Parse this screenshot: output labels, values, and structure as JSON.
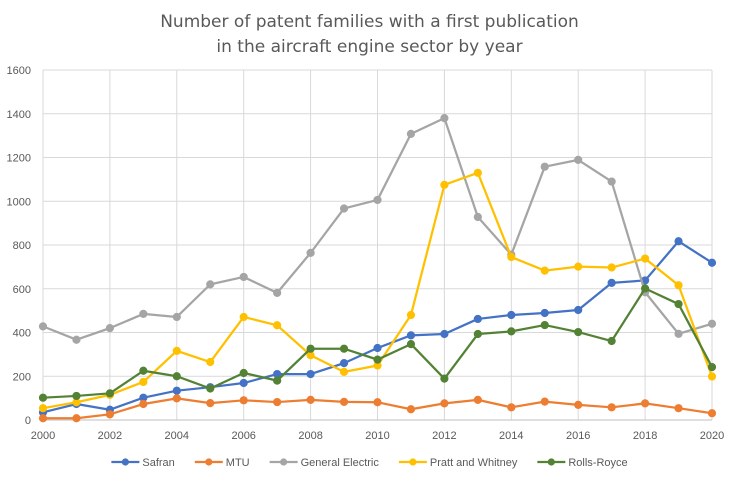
{
  "chart_data": {
    "type": "line",
    "title_lines": [
      "Number of patent families with a first publication",
      "in the aircraft engine sector by year"
    ],
    "xlabel": "",
    "ylabel": "",
    "x": [
      2000,
      2001,
      2002,
      2003,
      2004,
      2005,
      2006,
      2007,
      2008,
      2009,
      2010,
      2011,
      2012,
      2013,
      2014,
      2015,
      2016,
      2017,
      2018,
      2019,
      2020
    ],
    "x_tick_labels": [
      "2000",
      "2002",
      "2004",
      "2006",
      "2008",
      "2010",
      "2012",
      "2014",
      "2016",
      "2018",
      "2020"
    ],
    "x_ticks": [
      2000,
      2002,
      2004,
      2006,
      2008,
      2010,
      2012,
      2014,
      2016,
      2018,
      2020
    ],
    "xlim": [
      2000,
      2020
    ],
    "y_tick_labels": [
      "0",
      "200",
      "400",
      "600",
      "800",
      "1000",
      "1200",
      "1400",
      "1600"
    ],
    "y_ticks": [
      0,
      200,
      400,
      600,
      800,
      1000,
      1200,
      1400,
      1600
    ],
    "ylim": [
      0,
      1600
    ],
    "grid": true,
    "legend_position": "bottom",
    "series": [
      {
        "name": "Safran",
        "color": "#4472C4",
        "values": [
          35,
          73,
          47,
          102,
          134,
          150,
          169,
          210,
          210,
          260,
          329,
          387,
          393,
          462,
          480,
          489,
          503,
          627,
          638,
          817,
          719
        ]
      },
      {
        "name": "MTU",
        "color": "#ED7D31",
        "values": [
          8,
          8,
          26,
          73,
          99,
          77,
          90,
          82,
          92,
          83,
          81,
          49,
          76,
          92,
          58,
          84,
          69,
          58,
          76,
          54,
          31
        ]
      },
      {
        "name": "General Electric",
        "color": "#A5A5A5",
        "values": [
          428,
          367,
          420,
          485,
          471,
          620,
          654,
          581,
          764,
          967,
          1006,
          1308,
          1380,
          928,
          756,
          1158,
          1189,
          1090,
          584,
          394,
          440
        ]
      },
      {
        "name": "Pratt and Whitney",
        "color": "#FFC000",
        "values": [
          54,
          81,
          115,
          174,
          316,
          265,
          471,
          433,
          296,
          220,
          249,
          480,
          1075,
          1130,
          745,
          683,
          701,
          697,
          738,
          616,
          199
        ]
      },
      {
        "name": "Rolls-Royce",
        "color": "#548235",
        "values": [
          102,
          110,
          122,
          225,
          200,
          144,
          215,
          180,
          326,
          326,
          276,
          347,
          189,
          393,
          405,
          434,
          402,
          361,
          601,
          530,
          242
        ]
      }
    ]
  }
}
